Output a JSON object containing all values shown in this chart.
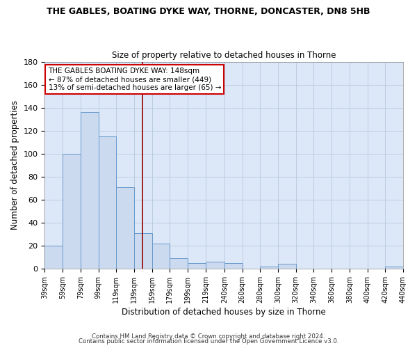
{
  "title": "THE GABLES, BOATING DYKE WAY, THORNE, DONCASTER, DN8 5HB",
  "subtitle": "Size of property relative to detached houses in Thorne",
  "xlabel": "Distribution of detached houses by size in Thorne",
  "ylabel": "Number of detached properties",
  "bar_color": "#ccdaf0",
  "bar_edge_color": "#6699cc",
  "background_color": "#dce8f8",
  "bins": [
    39,
    59,
    79,
    99,
    119,
    139,
    159,
    179,
    199,
    219,
    240,
    260,
    280,
    300,
    320,
    340,
    360,
    380,
    400,
    420,
    440
  ],
  "counts": [
    20,
    100,
    136,
    115,
    71,
    31,
    22,
    9,
    5,
    6,
    5,
    0,
    2,
    4,
    0,
    0,
    0,
    0,
    0,
    2
  ],
  "tick_labels": [
    "39sqm",
    "59sqm",
    "79sqm",
    "99sqm",
    "119sqm",
    "139sqm",
    "159sqm",
    "179sqm",
    "199sqm",
    "219sqm",
    "240sqm",
    "260sqm",
    "280sqm",
    "300sqm",
    "320sqm",
    "340sqm",
    "360sqm",
    "380sqm",
    "400sqm",
    "420sqm",
    "440sqm"
  ],
  "vline_x": 148,
  "vline_color": "#990000",
  "ylim": [
    0,
    180
  ],
  "yticks": [
    0,
    20,
    40,
    60,
    80,
    100,
    120,
    140,
    160,
    180
  ],
  "annotation_title": "THE GABLES BOATING DYKE WAY: 148sqm",
  "annotation_line1": "← 87% of detached houses are smaller (449)",
  "annotation_line2": "13% of semi-detached houses are larger (65) →",
  "annotation_box_color": "#ffffff",
  "annotation_box_edge": "#cc0000",
  "footer1": "Contains HM Land Registry data © Crown copyright and database right 2024.",
  "footer2": "Contains public sector information licensed under the Open Government Licence v3.0."
}
